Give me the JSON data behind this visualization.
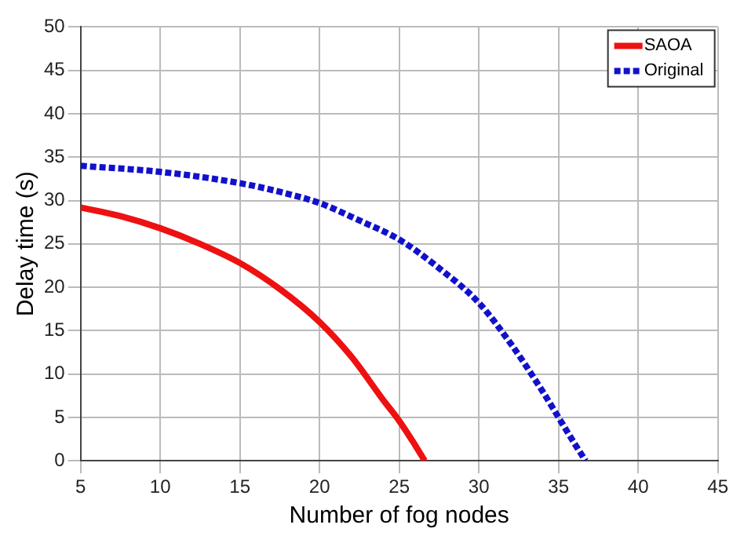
{
  "chart_data": {
    "type": "line",
    "xlabel": "Number of fog nodes",
    "ylabel": "Delay time (s)",
    "xlim": [
      5,
      45
    ],
    "xticks": [
      5,
      10,
      15,
      20,
      25,
      30,
      35,
      40,
      45
    ],
    "ylim": [
      0,
      50
    ],
    "yticks": [
      0,
      5,
      10,
      15,
      20,
      25,
      30,
      35,
      40,
      45,
      50
    ],
    "grid": true,
    "legend": "top right",
    "marker": "none",
    "series": [
      {
        "name": "SAOA",
        "color": "#ee1111",
        "line_style": "solid",
        "x": [
          5,
          7.5,
          10,
          12.5,
          15,
          17.5,
          20,
          22,
          24,
          25,
          26,
          26.6
        ],
        "values": [
          29.2,
          28.2,
          26.8,
          25,
          22.8,
          19.8,
          16,
          12,
          7,
          4.6,
          1.8,
          0
        ]
      },
      {
        "name": "Original",
        "color": "#1111cc",
        "line_style": "dotted",
        "x": [
          5,
          10,
          15,
          17.5,
          20,
          22.5,
          25,
          27.5,
          30,
          32,
          34,
          35,
          36,
          36.7
        ],
        "values": [
          34,
          33.3,
          32,
          31,
          29.7,
          27.7,
          25.5,
          22.2,
          18.2,
          13.5,
          8,
          5,
          2,
          0
        ]
      }
    ]
  }
}
